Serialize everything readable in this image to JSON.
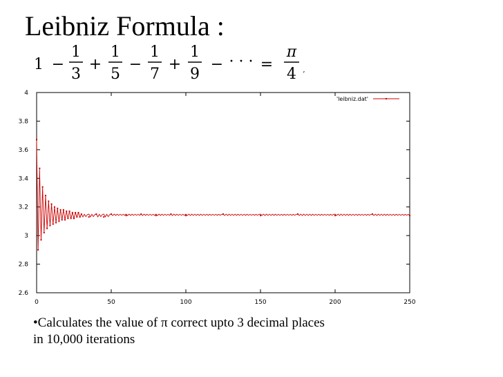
{
  "slide": {
    "title": "Leibniz Formula :",
    "formula": {
      "terms": [
        {
          "sign": "",
          "num": "1",
          "den": ""
        },
        {
          "sign": "−",
          "num": "1",
          "den": "3"
        },
        {
          "sign": "+",
          "num": "1",
          "den": "5"
        },
        {
          "sign": "−",
          "num": "1",
          "den": "7"
        },
        {
          "sign": "+",
          "num": "1",
          "den": "9"
        }
      ],
      "trail_sign": "−",
      "ellipsis": "· · ·",
      "equals": "=",
      "result": {
        "num": "π",
        "den": "4"
      },
      "tail": ","
    },
    "caption": {
      "line1": "•Calculates the value of π correct upto 3 decimal places",
      "line2": "in 10,000 iterations"
    }
  },
  "colors": {
    "series": "#cc0000",
    "axis": "#000000"
  },
  "chart_data": {
    "type": "line",
    "title": "",
    "xlabel": "",
    "ylabel": "",
    "xlim": [
      0,
      250
    ],
    "ylim": [
      2.6,
      4
    ],
    "x_ticks": [
      0,
      50,
      100,
      150,
      200,
      250
    ],
    "y_ticks": [
      2.6,
      2.8,
      3,
      3.2,
      3.4,
      3.6,
      3.8,
      4
    ],
    "x_tick_labels": [
      "0",
      "50",
      "100",
      "150",
      "200",
      "250"
    ],
    "y_tick_labels": [
      "2.6",
      "2.8",
      "3",
      "3.2",
      "3.4",
      "3.6",
      "3.8",
      "4"
    ],
    "grid": false,
    "legend_position": "top-right",
    "series": [
      {
        "name": "'leibniz.dat'",
        "x": [
          0,
          1,
          2,
          3,
          4,
          5,
          6,
          7,
          8,
          9,
          10,
          11,
          12,
          13,
          14,
          15,
          16,
          17,
          18,
          19,
          20,
          21,
          22,
          23,
          24,
          25,
          26,
          27,
          28,
          29,
          30,
          35,
          40,
          45,
          50,
          60,
          70,
          80,
          90,
          100,
          125,
          150,
          175,
          200,
          225,
          250
        ],
        "y": [
          3.67,
          2.9,
          3.47,
          2.97,
          3.34,
          3.02,
          3.28,
          3.05,
          3.24,
          3.07,
          3.22,
          3.08,
          3.2,
          3.09,
          3.19,
          3.1,
          3.18,
          3.11,
          3.18,
          3.11,
          3.17,
          3.12,
          3.17,
          3.12,
          3.16,
          3.12,
          3.16,
          3.13,
          3.16,
          3.13,
          3.15,
          3.13,
          3.15,
          3.13,
          3.15,
          3.14,
          3.15,
          3.14,
          3.15,
          3.14,
          3.15,
          3.14,
          3.15,
          3.14,
          3.15,
          3.14
        ]
      }
    ]
  }
}
